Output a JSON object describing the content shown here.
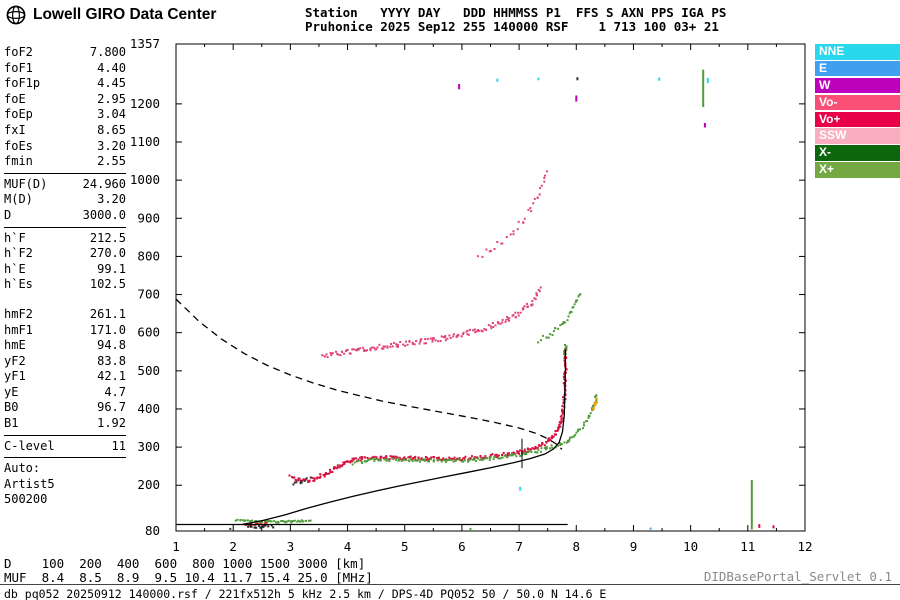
{
  "header": {
    "brand": "Lowell GIRO Data Center",
    "station_line1": "Station   YYYY DAY   DDD HHMMSS P1  FFS S AXN PPS IGA PS",
    "station_line2": "Pruhonice 2025 Sep12 255 140000 RSF    1 713 100 03+ 21"
  },
  "left_panel": {
    "groups": [
      {
        "rule_after": true,
        "gap_after": false,
        "rows": [
          [
            "foF2",
            "7.800"
          ],
          [
            "foF1",
            "4.40"
          ],
          [
            "foF1p",
            "4.45"
          ],
          [
            "foE",
            "2.95"
          ],
          [
            "foEp",
            "3.04"
          ],
          [
            "fxI",
            "8.65"
          ],
          [
            "foEs",
            "3.20"
          ],
          [
            "fmin",
            "2.55"
          ]
        ]
      },
      {
        "rule_after": true,
        "gap_after": false,
        "rows": [
          [
            "MUF(D)",
            "24.960"
          ],
          [
            "M(D)",
            "3.20"
          ],
          [
            "D",
            "3000.0"
          ]
        ]
      },
      {
        "rule_after": false,
        "gap_after": true,
        "rows": [
          [
            "h`F",
            "212.5"
          ],
          [
            "h`F2",
            "270.0"
          ],
          [
            "h`E",
            "99.1"
          ],
          [
            "h`Es",
            "102.5"
          ]
        ]
      },
      {
        "rule_after": true,
        "gap_after": false,
        "rows": [
          [
            "hmF2",
            "261.1"
          ],
          [
            "hmF1",
            "171.0"
          ],
          [
            "hmE",
            "94.8"
          ],
          [
            "yF2",
            "83.8"
          ],
          [
            "yF1",
            "42.1"
          ],
          [
            "yE",
            "4.7"
          ],
          [
            "B0",
            "96.7"
          ],
          [
            "B1",
            "1.92"
          ]
        ]
      },
      {
        "rule_after": true,
        "gap_after": false,
        "rows": [
          [
            "C-level",
            "11"
          ]
        ]
      }
    ],
    "auto_lines": [
      "Auto:",
      "Artist5",
      "500200"
    ]
  },
  "legend": {
    "items": [
      {
        "label": "NNE",
        "color": "#29D8EC"
      },
      {
        "label": "E",
        "color": "#3FA0F0"
      },
      {
        "label": "W",
        "color": "#BC00BC"
      },
      {
        "label": "Vo-",
        "color": "#FA5078"
      },
      {
        "label": "Vo+",
        "color": "#E80048"
      },
      {
        "label": "SSW",
        "color": "#F8AEBE"
      },
      {
        "label": "X-",
        "color": "#0D660D"
      },
      {
        "label": "X+",
        "color": "#74A843"
      }
    ]
  },
  "bottom": {
    "d_row": "D    100  200  400  600  800 1000 1500 3000 [km]",
    "muf_row": "MUF  8.4  8.5  8.9  9.5 10.4 11.7 15.4 25.0 [MHz]"
  },
  "footer": {
    "servlet": "DIDBasePortal_Servlet 0.1",
    "status": "db pq052 20250912 140000.rsf / 221fx512h 5 kHz 2.5 km / DPS-4D PQ052 50 / 50.0 N 14.6 E"
  },
  "chart_data": {
    "type": "scatter",
    "xlim": [
      1,
      12
    ],
    "ylim": [
      80,
      1357
    ],
    "x_unit": "MHz",
    "y_unit": "km",
    "x_ticks": [
      1,
      2,
      3,
      4,
      5,
      6,
      7,
      8,
      9,
      10,
      11,
      12
    ],
    "y_tick_labels": [
      1357,
      1200,
      1100,
      1000,
      900,
      800,
      700,
      600,
      500,
      400,
      300,
      200,
      80
    ],
    "traces": [
      {
        "name": "f-trace-o",
        "color": "#D6123F",
        "step": 1.3,
        "jx": 1.3,
        "jy": 1.8,
        "size": 2,
        "points": [
          [
            3.0,
            224
          ],
          [
            3.1,
            217
          ],
          [
            3.2,
            213
          ],
          [
            3.3,
            213
          ],
          [
            3.4,
            216
          ],
          [
            3.5,
            222
          ],
          [
            3.6,
            229
          ],
          [
            3.7,
            237
          ],
          [
            3.8,
            246
          ],
          [
            3.9,
            254
          ],
          [
            4.0,
            261
          ],
          [
            4.1,
            266
          ],
          [
            4.25,
            269
          ],
          [
            4.4,
            271
          ],
          [
            4.6,
            272
          ],
          [
            4.8,
            272
          ],
          [
            5.0,
            272
          ],
          [
            5.2,
            271
          ],
          [
            5.4,
            270
          ],
          [
            5.6,
            269
          ],
          [
            5.8,
            269
          ],
          [
            6.0,
            270
          ],
          [
            6.2,
            272
          ],
          [
            6.4,
            275
          ],
          [
            6.6,
            278
          ],
          [
            6.8,
            282
          ],
          [
            7.0,
            287
          ],
          [
            7.15,
            292
          ],
          [
            7.3,
            299
          ],
          [
            7.4,
            306
          ],
          [
            7.5,
            315
          ],
          [
            7.58,
            325
          ],
          [
            7.65,
            338
          ],
          [
            7.7,
            353
          ],
          [
            7.74,
            372
          ],
          [
            7.77,
            398
          ],
          [
            7.79,
            430
          ],
          [
            7.8,
            470
          ],
          [
            7.81,
            515
          ],
          [
            7.81,
            560
          ]
        ]
      },
      {
        "name": "f-trace-x",
        "color": "#4F9C38",
        "step": 2.0,
        "jx": 1.2,
        "jy": 1.6,
        "size": 2,
        "points": [
          [
            4.1,
            258
          ],
          [
            4.3,
            263
          ],
          [
            4.5,
            266
          ],
          [
            4.7,
            267
          ],
          [
            4.9,
            267
          ],
          [
            5.1,
            266
          ],
          [
            5.3,
            265
          ],
          [
            5.5,
            264
          ],
          [
            5.7,
            264
          ],
          [
            5.9,
            264
          ],
          [
            6.1,
            266
          ],
          [
            6.3,
            268
          ],
          [
            6.5,
            271
          ],
          [
            6.7,
            274
          ],
          [
            6.9,
            278
          ],
          [
            7.1,
            283
          ],
          [
            7.3,
            289
          ],
          [
            7.5,
            297
          ],
          [
            7.7,
            307
          ],
          [
            7.85,
            318
          ],
          [
            7.95,
            330
          ],
          [
            8.05,
            344
          ],
          [
            8.15,
            361
          ],
          [
            8.22,
            380
          ],
          [
            8.28,
            400
          ],
          [
            8.33,
            420
          ],
          [
            8.36,
            438
          ]
        ]
      },
      {
        "name": "f-tip-x",
        "color": "#4F9C38",
        "step": 1.6,
        "jx": 1.2,
        "jy": 2.0,
        "size": 2,
        "points": [
          [
            7.8,
            542
          ],
          [
            7.81,
            558
          ],
          [
            7.82,
            572
          ]
        ]
      },
      {
        "name": "x-tail-amber",
        "color": "#F0A000",
        "step": 1.6,
        "jx": 1.2,
        "jy": 1.5,
        "size": 2,
        "points": [
          [
            8.3,
            398
          ],
          [
            8.34,
            412
          ],
          [
            8.37,
            424
          ]
        ]
      },
      {
        "name": "second-hop-o",
        "color": "#E0447A",
        "step": 1.7,
        "jx": 1.2,
        "jy": 2.4,
        "size": 2,
        "points": [
          [
            3.55,
            538
          ],
          [
            3.7,
            542
          ],
          [
            3.9,
            547
          ],
          [
            4.1,
            552
          ],
          [
            4.3,
            557
          ],
          [
            4.5,
            561
          ],
          [
            4.7,
            565
          ],
          [
            4.9,
            569
          ],
          [
            5.1,
            573
          ],
          [
            5.3,
            577
          ],
          [
            5.5,
            581
          ],
          [
            5.7,
            586
          ],
          [
            5.9,
            592
          ],
          [
            6.1,
            599
          ],
          [
            6.3,
            607
          ],
          [
            6.5,
            616
          ],
          [
            6.65,
            625
          ],
          [
            6.8,
            635
          ],
          [
            6.95,
            647
          ],
          [
            7.08,
            660
          ],
          [
            7.2,
            676
          ],
          [
            7.3,
            694
          ],
          [
            7.38,
            714
          ]
        ]
      },
      {
        "name": "second-hop-x",
        "color": "#4F9C38",
        "step": 2.6,
        "jx": 1.2,
        "jy": 2.2,
        "size": 2,
        "points": [
          [
            7.35,
            580
          ],
          [
            7.5,
            592
          ],
          [
            7.65,
            607
          ],
          [
            7.78,
            626
          ],
          [
            7.9,
            650
          ],
          [
            8.0,
            680
          ],
          [
            8.07,
            705
          ]
        ]
      },
      {
        "name": "third-hop-o",
        "color": "#E0447A",
        "step": 4.5,
        "jx": 1.5,
        "jy": 3.0,
        "size": 2,
        "points": [
          [
            6.3,
            800
          ],
          [
            6.5,
            818
          ],
          [
            6.7,
            840
          ],
          [
            6.9,
            866
          ],
          [
            7.05,
            893
          ],
          [
            7.2,
            925
          ],
          [
            7.32,
            958
          ],
          [
            7.42,
            993
          ],
          [
            7.5,
            1025
          ]
        ]
      },
      {
        "name": "es-trace-x",
        "color": "#4F9C38",
        "step": 1.7,
        "jx": 1.0,
        "jy": 0.9,
        "size": 2,
        "points": [
          [
            2.05,
            108
          ],
          [
            2.2,
            106
          ],
          [
            2.4,
            105
          ],
          [
            2.6,
            104
          ],
          [
            2.8,
            104
          ],
          [
            3.0,
            105
          ],
          [
            3.2,
            106
          ],
          [
            3.35,
            107
          ]
        ]
      },
      {
        "name": "es-trace-o",
        "color": "#C22020",
        "step": 1.9,
        "jx": 1.0,
        "jy": 1.5,
        "size": 2,
        "points": [
          [
            2.2,
            99
          ],
          [
            2.3,
            97
          ],
          [
            2.4,
            96
          ],
          [
            2.5,
            97
          ],
          [
            2.6,
            99
          ]
        ]
      },
      {
        "name": "es-dark",
        "color": "#222222",
        "step": 2.2,
        "jx": 1.2,
        "jy": 1.4,
        "size": 2,
        "points": [
          [
            2.25,
            91
          ],
          [
            2.4,
            90
          ],
          [
            2.55,
            91
          ],
          [
            2.7,
            93
          ]
        ]
      },
      {
        "name": "f-start-dark",
        "color": "#333333",
        "step": 2.6,
        "jx": 1.2,
        "jy": 2.2,
        "size": 2,
        "points": [
          [
            3.05,
            203
          ],
          [
            3.2,
            211
          ],
          [
            3.35,
            218
          ]
        ]
      }
    ],
    "lines": [
      {
        "name": "baseline",
        "style": "solid",
        "width": 1.2,
        "color": "#000000",
        "points": [
          [
            1.0,
            97
          ],
          [
            7.85,
            97
          ]
        ]
      },
      {
        "name": "true-height-profile",
        "style": "solid",
        "width": 1.3,
        "color": "#000000",
        "points": [
          [
            2.15,
            97
          ],
          [
            2.5,
            107
          ],
          [
            2.9,
            122
          ],
          [
            3.3,
            140
          ],
          [
            3.7,
            156
          ],
          [
            4.1,
            171
          ],
          [
            4.5,
            185
          ],
          [
            4.9,
            198
          ],
          [
            5.3,
            210
          ],
          [
            5.7,
            222
          ],
          [
            6.1,
            234
          ],
          [
            6.5,
            246
          ],
          [
            6.9,
            259
          ],
          [
            7.2,
            270
          ],
          [
            7.45,
            282
          ],
          [
            7.6,
            295
          ],
          [
            7.7,
            312
          ],
          [
            7.76,
            340
          ],
          [
            7.79,
            385
          ],
          [
            7.8,
            440
          ],
          [
            7.81,
            500
          ],
          [
            7.81,
            556
          ]
        ]
      },
      {
        "name": "muf-transmission-curve",
        "style": "dashed",
        "width": 1.3,
        "color": "#000000",
        "points": [
          [
            1.0,
            688
          ],
          [
            1.4,
            630
          ],
          [
            1.8,
            583
          ],
          [
            2.2,
            545
          ],
          [
            2.6,
            514
          ],
          [
            3.0,
            489
          ],
          [
            3.4,
            468
          ],
          [
            3.8,
            450
          ],
          [
            4.2,
            435
          ],
          [
            4.6,
            421
          ],
          [
            5.0,
            409
          ],
          [
            5.4,
            398
          ],
          [
            5.8,
            387
          ],
          [
            6.2,
            376
          ],
          [
            6.6,
            364
          ],
          [
            7.0,
            350
          ],
          [
            7.3,
            336
          ],
          [
            7.5,
            322
          ],
          [
            7.65,
            308
          ],
          [
            7.75,
            294
          ]
        ]
      },
      {
        "name": "fof2-marker",
        "style": "solid",
        "width": 1.0,
        "color": "#000000",
        "points": [
          [
            7.05,
            245
          ],
          [
            7.05,
            322
          ]
        ]
      }
    ],
    "specks": [
      {
        "x": 5.95,
        "h1": 1238,
        "h2": 1252,
        "color": "#BC00BC"
      },
      {
        "x": 6.62,
        "h1": 1258,
        "h2": 1266,
        "color": "#29D8EC"
      },
      {
        "x": 7.02,
        "h1": 186,
        "h2": 196,
        "color": "#29D8EC"
      },
      {
        "x": 7.34,
        "h1": 1262,
        "h2": 1269,
        "color": "#29D8EC"
      },
      {
        "x": 8.0,
        "h1": 1206,
        "h2": 1222,
        "color": "#BC00BC"
      },
      {
        "x": 8.02,
        "h1": 1262,
        "h2": 1270,
        "color": "#333333"
      },
      {
        "x": 9.45,
        "h1": 1261,
        "h2": 1269,
        "color": "#29D8EC"
      },
      {
        "x": 10.22,
        "h1": 1192,
        "h2": 1290,
        "color": "#4F9C38"
      },
      {
        "x": 10.3,
        "h1": 1254,
        "h2": 1268,
        "color": "#29D8EC"
      },
      {
        "x": 10.25,
        "h1": 1138,
        "h2": 1150,
        "color": "#BC00BC"
      },
      {
        "x": 11.07,
        "h1": 84,
        "h2": 214,
        "color": "#4F9C38"
      },
      {
        "x": 11.2,
        "h1": 88,
        "h2": 98,
        "color": "#D6123F"
      },
      {
        "x": 11.45,
        "h1": 87,
        "h2": 95,
        "color": "#D6123F"
      },
      {
        "x": 9.3,
        "h1": 84,
        "h2": 89,
        "color": "#3FA0F0"
      },
      {
        "x": 1.95,
        "h1": 84,
        "h2": 88,
        "color": "#333333"
      },
      {
        "x": 6.15,
        "h1": 84,
        "h2": 88,
        "color": "#4F9C38"
      }
    ]
  }
}
